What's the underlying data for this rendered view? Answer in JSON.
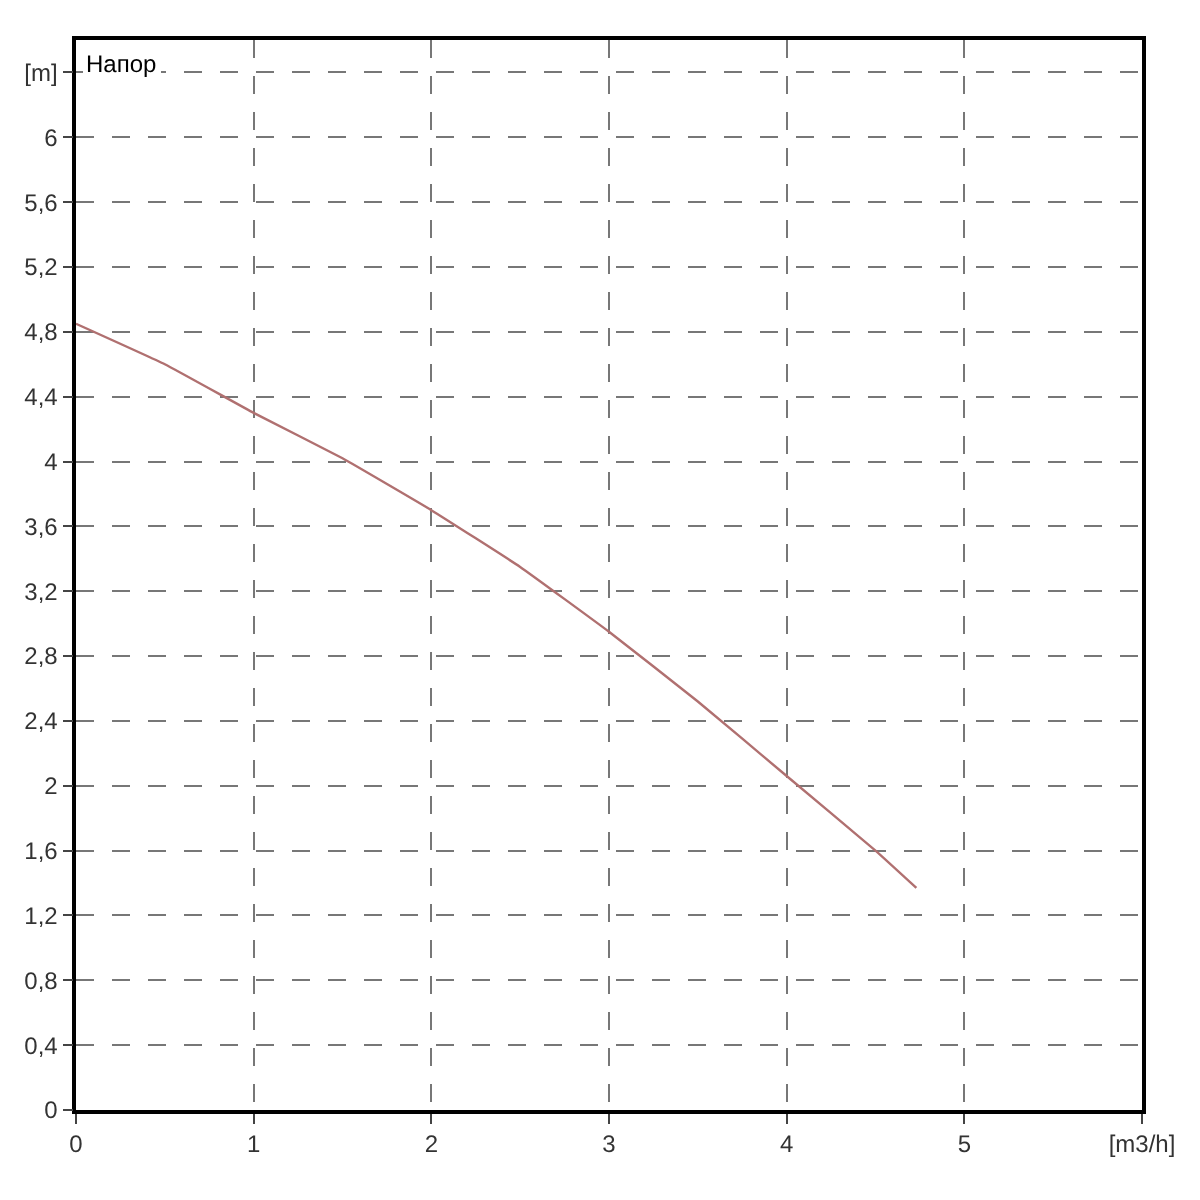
{
  "chart_data": {
    "type": "line",
    "title": "Напор",
    "x": [
      0,
      0.5,
      1,
      1.5,
      2,
      2.5,
      3,
      3.5,
      4,
      4.5,
      4.73
    ],
    "series": [
      {
        "color": "#b07070",
        "values": [
          4.85,
          4.6,
          4.3,
          4.02,
          3.7,
          3.35,
          2.95,
          2.52,
          2.06,
          1.6,
          1.37
        ]
      }
    ],
    "xlim": [
      0,
      6
    ],
    "xticks": [
      0,
      1,
      2,
      3,
      4,
      5,
      {
        "value": 6,
        "label": "[m3/h]"
      }
    ],
    "ylim": [
      0,
      6.6
    ],
    "yticks": [
      0,
      {
        "value": 0.4,
        "label": "0,4"
      },
      {
        "value": 0.8,
        "label": "0,8"
      },
      {
        "value": 1.2,
        "label": "1,2"
      },
      {
        "value": 1.6,
        "label": "1,6"
      },
      2,
      {
        "value": 2.4,
        "label": "2,4"
      },
      {
        "value": 2.8,
        "label": "2,8"
      },
      {
        "value": 3.2,
        "label": "3,2"
      },
      {
        "value": 3.6,
        "label": "3,6"
      },
      4,
      {
        "value": 4.4,
        "label": "4,4"
      },
      {
        "value": 4.8,
        "label": "4,8"
      },
      {
        "value": 5.2,
        "label": "5,2"
      },
      {
        "value": 5.6,
        "label": "5,6"
      },
      6,
      {
        "value": 6.4,
        "label": "[m]"
      }
    ],
    "grid": true,
    "marker": "none",
    "line_style": "solid"
  }
}
